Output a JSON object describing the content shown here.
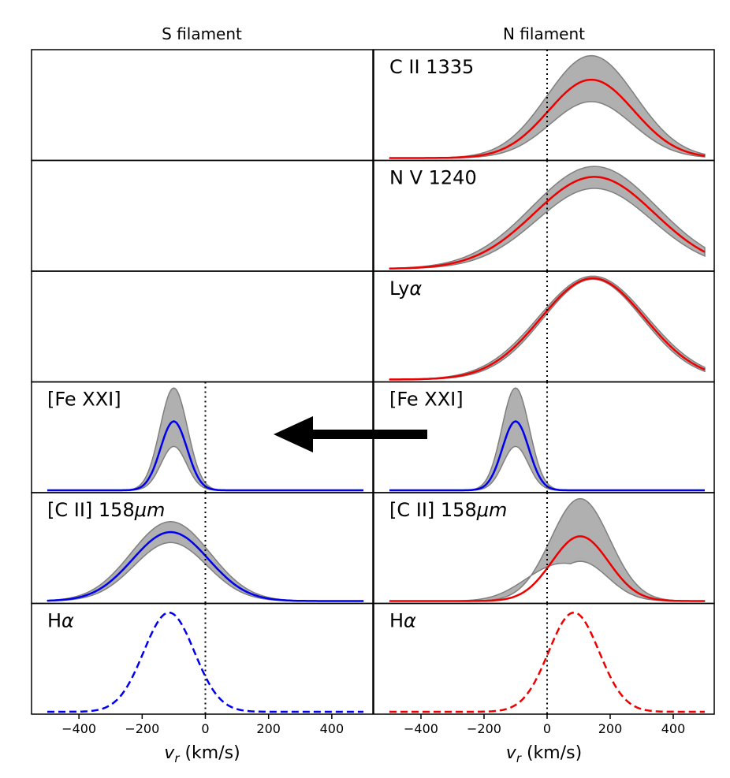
{
  "chart_data": {
    "type": "line",
    "title": "",
    "column_titles": [
      "S filament",
      "N filament"
    ],
    "xlabel_main": "v",
    "xlabel_sub": "r",
    "xlabel_units": " (km/s)",
    "xlim": [
      -550,
      530
    ],
    "x_ticks": [
      -400,
      -200,
      0,
      200,
      400
    ],
    "x_tick_labels": [
      "−400",
      "−200",
      "0",
      "200",
      "400"
    ],
    "x_range": [
      -500,
      500
    ],
    "colors": {
      "red": "#ee0000",
      "blue": "#0000ee",
      "band": "#b0b0b0",
      "band_edge": "#7f7f7f"
    },
    "panels": [
      {
        "row": 0,
        "col": 0,
        "label": "",
        "empty": true
      },
      {
        "row": 0,
        "col": 1,
        "label": "C II 1335",
        "color": "red",
        "style": "solid",
        "center": 140,
        "sigma": 135,
        "mid": 0.75,
        "upper": 0.98,
        "lower": 0.54,
        "zero_line": true
      },
      {
        "row": 1,
        "col": 0,
        "label": "",
        "empty": true
      },
      {
        "row": 1,
        "col": 1,
        "label": "N V 1240",
        "color": "red",
        "style": "solid",
        "center": 150,
        "sigma": 190,
        "mid": 0.88,
        "upper": 0.98,
        "lower": 0.77,
        "zero_line": true
      },
      {
        "row": 2,
        "col": 0,
        "label": "",
        "empty": true
      },
      {
        "row": 2,
        "col": 1,
        "label": "Ly",
        "label_greek": "α",
        "color": "red",
        "style": "solid",
        "center": 145,
        "sigma": 165,
        "mid": 0.97,
        "upper": 0.99,
        "lower": 0.96,
        "zero_line": true
      },
      {
        "row": 3,
        "col": 0,
        "label": "[Fe XXI]",
        "color": "blue",
        "style": "solid",
        "center": -100,
        "sigma": 42,
        "mid": 0.66,
        "upper": 0.98,
        "lower": 0.42,
        "zero_line": true
      },
      {
        "row": 3,
        "col": 1,
        "label": "[Fe XXI]",
        "color": "blue",
        "style": "solid",
        "center": -100,
        "sigma": 42,
        "mid": 0.66,
        "upper": 0.98,
        "lower": 0.42,
        "zero_line": true
      },
      {
        "row": 4,
        "col": 0,
        "label": "[C II] 158",
        "label_greek": "μm",
        "color": "blue",
        "style": "solid",
        "center": -110,
        "sigma": 120,
        "mid": 0.66,
        "upper": 0.76,
        "lower": 0.56,
        "zero_line": true
      },
      {
        "row": 4,
        "col": 1,
        "label": "[C II] 158",
        "label_greek": "μm",
        "color": "red",
        "style": "solid",
        "center": 105,
        "sigma": 90,
        "mid": 0.62,
        "upper": 0.98,
        "lower": 0.38,
        "zero_line": true,
        "lower_shoulder": true
      },
      {
        "row": 5,
        "col": 0,
        "label": "H",
        "label_greek": "α",
        "color": "blue",
        "style": "dashed",
        "center": -115,
        "sigma": 80,
        "mid": 0.95,
        "zero_line": true
      },
      {
        "row": 5,
        "col": 1,
        "label": "H",
        "label_greek": "α",
        "color": "red",
        "style": "dashed",
        "center": 85,
        "sigma": 80,
        "mid": 0.95,
        "zero_line": true
      }
    ],
    "annotation": "arrow pointing from N filament [Fe XXI] panel to S filament [Fe XXI] panel"
  }
}
